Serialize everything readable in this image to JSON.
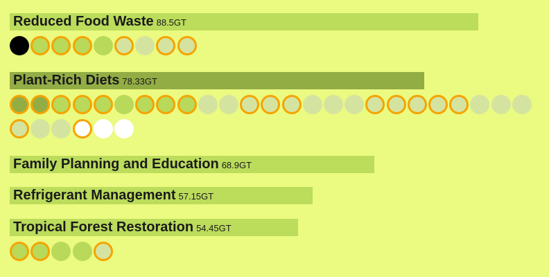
{
  "chart_data": {
    "type": "bar",
    "orientation": "horizontal",
    "unit": "GT",
    "colors": {
      "background": "#ebfa80",
      "bar": "#bcdc5c",
      "bar_highlight": "#93ad45",
      "outline": "#f5a400",
      "dot_black": "#000000",
      "dot_dark": "#93ad45",
      "dot_mid": "#b8d95a",
      "dot_pale": "#d4e4a0",
      "dot_white": "#ffffff"
    },
    "items": [
      {
        "name": "Reduced Food Waste",
        "value": 88.5,
        "value_label": "88.5GT",
        "highlight": false,
        "dots": [
          "black",
          "mid+o",
          "mid+o",
          "mid+o",
          "mid",
          "pale+o",
          "pale",
          "pale+o",
          "pale+o"
        ]
      },
      {
        "name": "Plant-Rich Diets",
        "value": 78.33,
        "value_label": "78.33GT",
        "highlight": true,
        "dots": [
          "dark+o",
          "dark+o",
          "mid+o",
          "mid+o",
          "mid+o",
          "mid",
          "mid+o",
          "mid+o",
          "mid+o",
          "pale",
          "pale",
          "pale+o",
          "pale+o",
          "pale+o",
          "pale",
          "pale",
          "pale",
          "pale+o",
          "pale+o",
          "pale+o",
          "pale+o",
          "pale+o",
          "pale",
          "pale",
          "pale",
          "pale+o",
          "pale",
          "pale",
          "white+o",
          "white",
          "white"
        ]
      },
      {
        "name": "Family Planning and Education",
        "value": 68.9,
        "value_label": "68.9GT",
        "highlight": false,
        "dots": []
      },
      {
        "name": "Refrigerant Management",
        "value": 57.15,
        "value_label": "57.15GT",
        "highlight": false,
        "dots": []
      },
      {
        "name": "Tropical Forest Restoration",
        "value": 54.45,
        "value_label": "54.45GT",
        "highlight": false,
        "dots": [
          "mid+o",
          "mid+o",
          "mid",
          "mid",
          "pale+o"
        ]
      }
    ]
  }
}
